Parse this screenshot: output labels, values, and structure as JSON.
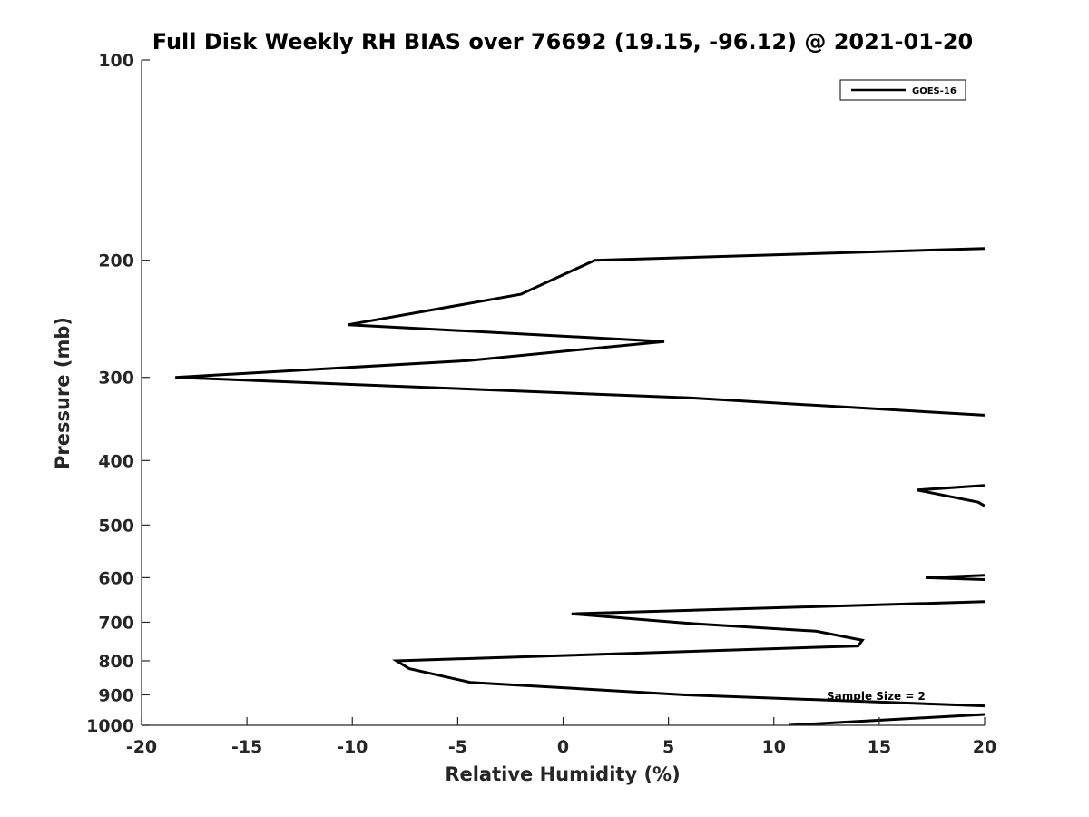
{
  "chart_data": {
    "type": "line",
    "title": "Full Disk Weekly RH BIAS over 76692 (19.15, -96.12) @ 2021-01-20",
    "xlabel": "Relative Humidity (%)",
    "ylabel": "Pressure (mb)",
    "xlim": [
      -20,
      20
    ],
    "ylim": [
      100,
      1000
    ],
    "y_scale": "log",
    "y_reversed": true,
    "x_ticks": [
      -20,
      -15,
      -10,
      -5,
      0,
      5,
      10,
      15,
      20
    ],
    "y_ticks": [
      100,
      200,
      300,
      400,
      500,
      600,
      700,
      800,
      900,
      1000
    ],
    "grid": false,
    "legend": {
      "location": "top-right",
      "entries": [
        "GOES-16"
      ]
    },
    "annotations": [
      "Sample Size = 2"
    ],
    "series": [
      {
        "name": "GOES-16",
        "color": "#000000",
        "segments": [
          [
            [
              20,
              192
            ],
            [
              1.5,
              200
            ],
            [
              -2,
              225
            ],
            [
              -10.2,
              250
            ],
            [
              4.8,
              265
            ],
            [
              -4.5,
              283
            ],
            [
              -18.4,
              300
            ],
            [
              6,
              322
            ],
            [
              20,
              342
            ]
          ],
          [
            [
              20,
              436
            ],
            [
              16.8,
              443
            ],
            [
              19.7,
              462
            ],
            [
              20,
              468
            ]
          ],
          [
            [
              20,
              595
            ],
            [
              17.2,
              600
            ],
            [
              20,
              604
            ]
          ],
          [
            [
              20,
              652
            ],
            [
              0.4,
              680
            ],
            [
              5.8,
              702
            ],
            [
              12,
              722
            ],
            [
              14.2,
              745
            ],
            [
              14,
              760
            ],
            [
              -7.9,
              800
            ],
            [
              -7.3,
              822
            ],
            [
              -4.4,
              862
            ],
            [
              5.8,
              900
            ],
            [
              20,
              935
            ]
          ],
          [
            [
              20,
              963
            ],
            [
              10.7,
              1000
            ]
          ]
        ]
      }
    ]
  }
}
